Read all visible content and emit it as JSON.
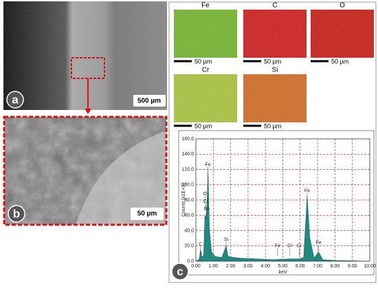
{
  "panels": {
    "a": {
      "label": "a",
      "scale": "500 µm"
    },
    "b": {
      "label": "b",
      "scale": "50 µm"
    },
    "c": {
      "label": "c"
    }
  },
  "maps": [
    {
      "element": "Fe",
      "scale": "50 µm",
      "color": "#72b52a"
    },
    {
      "element": "C",
      "scale": "50 µm",
      "color": "#d01818"
    },
    {
      "element": "O",
      "scale": "50 µm",
      "color": "#c81a10"
    },
    {
      "element": "Cr",
      "scale": "50 µm",
      "color": "#a8c43a"
    },
    {
      "element": "Si",
      "scale": "50 µm",
      "color": "#d06a20"
    }
  ],
  "chart_data": {
    "type": "area",
    "xlabel": "keV",
    "ylabel": "Counts [x1E+3]",
    "color": "#1f8a80",
    "grid": true,
    "x": [
      0,
      0.1,
      0.2,
      0.27,
      0.35,
      0.45,
      0.52,
      0.57,
      0.63,
      0.7,
      0.78,
      0.9,
      1.1,
      1.5,
      1.74,
      1.85,
      2.5,
      3.5,
      4.5,
      5.41,
      5.95,
      6.2,
      6.4,
      6.55,
      6.8,
      7.06,
      7.3,
      8,
      10
    ],
    "values": [
      0,
      1,
      3,
      15,
      5,
      8,
      60,
      55,
      70,
      118,
      40,
      12,
      6,
      5,
      20,
      6,
      4,
      3,
      2,
      3,
      3,
      5,
      85,
      30,
      4,
      12,
      2,
      1,
      0
    ],
    "xlim": [
      0,
      10
    ],
    "ylim": [
      0,
      160
    ],
    "xticks": [
      {
        "value": 0,
        "label": "0.00"
      },
      {
        "value": 1,
        "label": "1.00"
      },
      {
        "value": 2,
        "label": "2.00"
      },
      {
        "value": 3,
        "label": "3.00"
      },
      {
        "value": 4,
        "label": "4.00"
      },
      {
        "value": 5,
        "label": "5.00"
      },
      {
        "value": 6,
        "label": "6.00"
      },
      {
        "value": 7,
        "label": "7.00"
      },
      {
        "value": 8,
        "label": "8.00"
      },
      {
        "value": 9,
        "label": "9.00"
      },
      {
        "value": 10,
        "label": "10.00"
      }
    ],
    "yticks": [
      {
        "value": 0,
        "label": "0.0"
      },
      {
        "value": 20,
        "label": "20.0"
      },
      {
        "value": 40,
        "label": "40.0"
      },
      {
        "value": 60,
        "label": "60.0"
      },
      {
        "value": 80,
        "label": "80.0"
      },
      {
        "value": 100,
        "label": "100.0"
      },
      {
        "value": 120,
        "label": "120.0"
      },
      {
        "value": 140,
        "label": "140.0"
      },
      {
        "value": 160,
        "label": "160.0"
      }
    ],
    "annotations": [
      {
        "text": "C",
        "x": 0.27,
        "y": 22
      },
      {
        "text": "O",
        "x": 0.52,
        "y": 88
      },
      {
        "text": "Cr",
        "x": 0.57,
        "y": 78
      },
      {
        "text": "Fe",
        "x": 0.63,
        "y": 68
      },
      {
        "text": "Fe",
        "x": 0.7,
        "y": 126
      },
      {
        "text": "Si",
        "x": 1.74,
        "y": 28
      },
      {
        "text": "Fe",
        "x": 4.7,
        "y": 20
      },
      {
        "text": "Cr",
        "x": 5.41,
        "y": 20
      },
      {
        "text": "Cr",
        "x": 5.95,
        "y": 20
      },
      {
        "text": "Fe",
        "x": 6.4,
        "y": 92
      },
      {
        "text": "Fe",
        "x": 7.06,
        "y": 24
      }
    ]
  }
}
